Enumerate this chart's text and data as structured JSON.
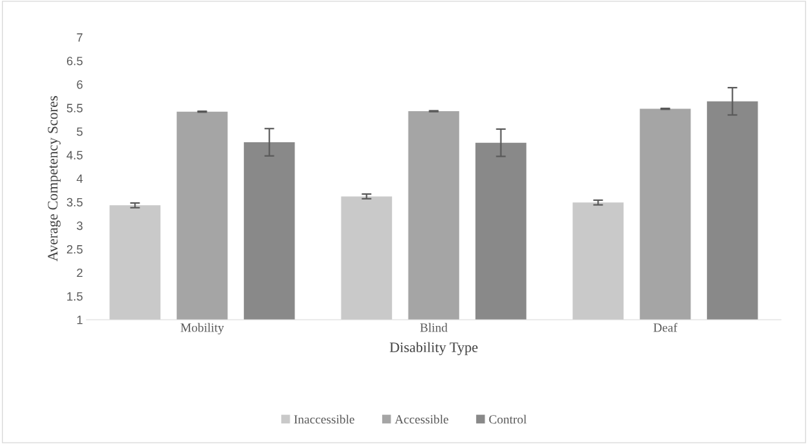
{
  "chart_data": {
    "type": "bar",
    "xlabel": "Disability Type",
    "ylabel": "Average Competency Scores",
    "categories": [
      "Mobility",
      "Blind",
      "Deaf"
    ],
    "series": [
      {
        "name": "Inaccessible",
        "color": "#c9c9c9",
        "values": [
          3.43,
          3.62,
          3.49
        ],
        "errors": [
          0.05,
          0.05,
          0.05
        ]
      },
      {
        "name": "Accessible",
        "color": "#a5a5a5",
        "values": [
          5.42,
          5.43,
          5.48
        ],
        "errors": [
          0.01,
          0.01,
          0.01
        ]
      },
      {
        "name": "Control",
        "color": "#898989",
        "values": [
          4.77,
          4.76,
          5.64
        ],
        "errors": [
          0.29,
          0.29,
          0.29
        ]
      }
    ],
    "ylim": [
      1,
      7
    ],
    "yticks": [
      1,
      1.5,
      2,
      2.5,
      3,
      3.5,
      4,
      4.5,
      5,
      5.5,
      6,
      6.5,
      7
    ],
    "grid": false,
    "legend": "bottom"
  }
}
